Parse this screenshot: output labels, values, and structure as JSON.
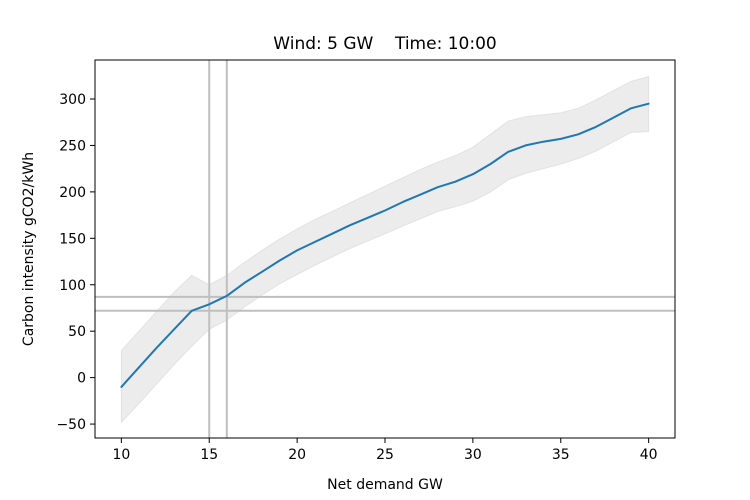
{
  "chart_data": {
    "type": "line",
    "title": "Wind: 5 GW    Time: 10:00",
    "xlabel": "Net demand GW",
    "ylabel": "Carbon intensity gCO2/kWh",
    "xlim": [
      8.5,
      41.5
    ],
    "ylim": [
      -65,
      342
    ],
    "xticks": [
      10,
      15,
      20,
      25,
      30,
      35,
      40
    ],
    "yticks": [
      -50,
      0,
      50,
      100,
      150,
      200,
      250,
      300
    ],
    "grid": false,
    "series": [
      {
        "color": "#1f77b4",
        "x": [
          10,
          11,
          12,
          13,
          14,
          15,
          16,
          17,
          18,
          19,
          20,
          21,
          22,
          23,
          24,
          25,
          26,
          27,
          28,
          29,
          30,
          31,
          32,
          33,
          34,
          35,
          36,
          37,
          38,
          39,
          40
        ],
        "y": [
          -10,
          11,
          32,
          52,
          72,
          79,
          88,
          102,
          114,
          126,
          137,
          146,
          155,
          164,
          172,
          180,
          189,
          197,
          205,
          211,
          219,
          230,
          243,
          250,
          254,
          257,
          262,
          270,
          280,
          290,
          295
        ],
        "band_lower": [
          -48,
          -28,
          -7,
          14,
          34,
          52,
          62,
          76,
          89,
          101,
          111,
          121,
          130,
          139,
          147,
          155,
          163,
          171,
          179,
          184,
          190,
          200,
          213,
          220,
          225,
          230,
          236,
          244,
          254,
          264,
          265
        ],
        "band_upper": [
          29,
          50,
          71,
          92,
          110,
          100,
          110,
          124,
          137,
          149,
          160,
          170,
          179,
          188,
          197,
          206,
          215,
          224,
          232,
          239,
          248,
          262,
          276,
          281,
          283,
          285,
          290,
          299,
          309,
          319,
          324
        ]
      }
    ],
    "band_color": "#ececec",
    "reference_lines": {
      "vertical_x": [
        15,
        16
      ],
      "horizontal_y": [
        72,
        87
      ],
      "color": "#bfbfbf"
    }
  }
}
